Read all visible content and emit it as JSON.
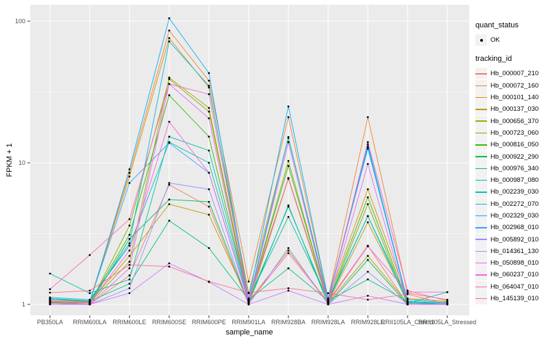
{
  "figure": {
    "background": "#FFFFFF",
    "panel_bg": "#EBEBEB",
    "grid_color": "#FFFFFF",
    "tick_color": "#333333",
    "tick_label_color": "#4D4D4D",
    "point_color": "#000000"
  },
  "chart_data": {
    "type": "line",
    "title": "",
    "xlabel": "sample_name",
    "ylabel": "FPKM + 1",
    "y_scale": "log10",
    "y_ticks": [
      1,
      10,
      100
    ],
    "y_minor_gridlines": [
      3.1623,
      31.623
    ],
    "ylim": [
      1,
      110
    ],
    "legend_position": "right",
    "grid": true,
    "categories": [
      "PB350LA",
      "RRIM600LA",
      "RRIM600LE",
      "RRIM600SE",
      "RRIM600PE",
      "RRIM901LA",
      "RRIM928BA",
      "RRIM928LA",
      "RRIM928LE",
      "RRII105LA_Control",
      "RRII105LA_Stressed"
    ],
    "series": [
      {
        "name": "Hb_000007_210",
        "color": "#F8766D",
        "values": [
          1.05,
          1.0,
          1.6,
          7.0,
          4.9,
          1.0,
          7.8,
          1.05,
          2.6,
          1.0,
          1.0
        ]
      },
      {
        "name": "Hb_000072_160",
        "color": "#EA8331",
        "values": [
          1.1,
          1.05,
          8.5,
          86,
          38,
          1.45,
          21,
          1.1,
          21,
          1.2,
          1.08
        ]
      },
      {
        "name": "Hb_000101_140",
        "color": "#D89000",
        "values": [
          1.08,
          1.04,
          8.0,
          76,
          34,
          1.2,
          15,
          1.08,
          6.5,
          1.1,
          1.05
        ]
      },
      {
        "name": "Hb_000137_030",
        "color": "#C09B00",
        "values": [
          1.06,
          1.03,
          2.2,
          5.1,
          4.3,
          1.05,
          2.4,
          1.03,
          3.8,
          1.05,
          1.02
        ]
      },
      {
        "name": "Hb_000656_370",
        "color": "#A3A500",
        "values": [
          1.04,
          1.02,
          2.0,
          40,
          24.4,
          1.06,
          7.7,
          1.02,
          2.2,
          1.02,
          1.0
        ]
      },
      {
        "name": "Hb_000723_060",
        "color": "#7CAE00",
        "values": [
          1.03,
          1.0,
          3.6,
          39,
          23,
          1.04,
          10.3,
          1.02,
          5.1,
          1.0,
          1.0
        ]
      },
      {
        "name": "Hb_000816_050",
        "color": "#39B600",
        "values": [
          1.05,
          1.02,
          3.1,
          30,
          15.3,
          1.05,
          9.5,
          1.04,
          5.7,
          1.03,
          1.0
        ]
      },
      {
        "name": "Hb_000922_290",
        "color": "#00BB4E",
        "values": [
          1.02,
          1.0,
          2.9,
          5.5,
          5.3,
          1.02,
          5.0,
          1.0,
          2.06,
          1.0,
          1.0
        ]
      },
      {
        "name": "Hb_000976_340",
        "color": "#00BF7D",
        "values": [
          1.1,
          1.05,
          1.4,
          3.9,
          2.5,
          1.08,
          1.8,
          1.06,
          1.5,
          1.05,
          1.02
        ]
      },
      {
        "name": "Hb_000987_080",
        "color": "#00C1A3",
        "values": [
          1.65,
          1.2,
          1.5,
          15.3,
          12.2,
          1.09,
          4.15,
          1.07,
          4.2,
          1.08,
          1.03
        ]
      },
      {
        "name": "Hb_002239_030",
        "color": "#00BFC4",
        "values": [
          1.12,
          1.08,
          2.6,
          14,
          10.0,
          1.07,
          4.9,
          1.05,
          4.2,
          1.02,
          1.22
        ]
      },
      {
        "name": "Hb_002272_070",
        "color": "#00BAE0",
        "values": [
          1.1,
          1.06,
          2.7,
          72,
          35,
          1.06,
          15.2,
          1.06,
          13.5,
          1.05,
          1.02
        ]
      },
      {
        "name": "Hb_002329_030",
        "color": "#00B0F6",
        "values": [
          1.05,
          1.02,
          9.0,
          105,
          43,
          1.1,
          25,
          1.1,
          12.6,
          1.05,
          1.0
        ]
      },
      {
        "name": "Hb_002968_010",
        "color": "#35A2FF",
        "values": [
          1.08,
          1.05,
          7.2,
          13.8,
          8.5,
          1.05,
          14,
          1.05,
          13.0,
          1.02,
          1.0
        ]
      },
      {
        "name": "Hb_005892_010",
        "color": "#9590FF",
        "values": [
          1.0,
          1.0,
          1.3,
          7.2,
          6.5,
          1.0,
          2.5,
          1.0,
          1.7,
          1.0,
          1.0
        ]
      },
      {
        "name": "Hb_014361_130",
        "color": "#C77CFF",
        "values": [
          1.0,
          1.0,
          1.2,
          1.95,
          1.44,
          1.0,
          1.25,
          1.0,
          1.15,
          1.0,
          1.0
        ]
      },
      {
        "name": "Hb_050898_010",
        "color": "#E76BF3",
        "values": [
          1.02,
          1.0,
          1.8,
          36,
          20.6,
          1.02,
          14,
          1.02,
          9.8,
          1.0,
          1.0
        ]
      },
      {
        "name": "Hb_060237_010",
        "color": "#FA62DB",
        "values": [
          1.05,
          1.02,
          2.4,
          19.5,
          8.5,
          1.03,
          2.3,
          1.03,
          2.57,
          1.22,
          1.22
        ]
      },
      {
        "name": "Hb_064047_010",
        "color": "#FF62BC",
        "values": [
          1.28,
          2.23,
          4.0,
          36,
          30.5,
          1.09,
          7.8,
          1.06,
          14,
          1.25,
          1.06
        ]
      },
      {
        "name": "Hb_145139_010",
        "color": "#FF6A98",
        "values": [
          1.21,
          1.25,
          1.9,
          1.85,
          1.45,
          1.21,
          1.3,
          1.2,
          1.08,
          1.18,
          1.0
        ]
      }
    ]
  },
  "legend": {
    "quant_status": {
      "title": "quant_status",
      "items": [
        {
          "label": "OK",
          "symbol": "point"
        }
      ]
    },
    "tracking_id": {
      "title": "tracking_id"
    }
  }
}
